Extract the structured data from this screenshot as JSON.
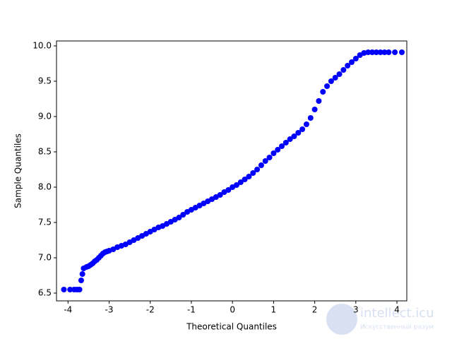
{
  "chart_data": {
    "type": "scatter",
    "xlabel": "Theoretical Quantiles",
    "ylabel": "Sample Quantiles",
    "color": "#0000ff",
    "x": [
      -4.1,
      -3.95,
      -3.85,
      -3.78,
      -3.72,
      -3.68,
      -3.65,
      -3.62,
      -3.55,
      -3.5,
      -3.45,
      -3.4,
      -3.35,
      -3.3,
      -3.25,
      -3.2,
      -3.15,
      -3.1,
      -3.05,
      -3.0,
      -2.9,
      -2.8,
      -2.7,
      -2.6,
      -2.5,
      -2.4,
      -2.3,
      -2.2,
      -2.1,
      -2.0,
      -1.9,
      -1.8,
      -1.7,
      -1.6,
      -1.5,
      -1.4,
      -1.3,
      -1.2,
      -1.1,
      -1.0,
      -0.9,
      -0.8,
      -0.7,
      -0.6,
      -0.5,
      -0.4,
      -0.3,
      -0.2,
      -0.1,
      0.0,
      0.1,
      0.2,
      0.3,
      0.4,
      0.5,
      0.6,
      0.7,
      0.8,
      0.9,
      1.0,
      1.1,
      1.2,
      1.3,
      1.4,
      1.5,
      1.6,
      1.7,
      1.8,
      1.9,
      2.0,
      2.1,
      2.2,
      2.3,
      2.4,
      2.5,
      2.6,
      2.7,
      2.8,
      2.9,
      3.0,
      3.1,
      3.2,
      3.3,
      3.4,
      3.5,
      3.6,
      3.7,
      3.8,
      3.95,
      4.12
    ],
    "values": [
      6.55,
      6.55,
      6.55,
      6.55,
      6.55,
      6.68,
      6.77,
      6.85,
      6.87,
      6.88,
      6.9,
      6.92,
      6.95,
      6.97,
      7.0,
      7.03,
      7.06,
      7.08,
      7.09,
      7.1,
      7.12,
      7.15,
      7.17,
      7.19,
      7.22,
      7.25,
      7.28,
      7.31,
      7.34,
      7.37,
      7.4,
      7.43,
      7.45,
      7.48,
      7.51,
      7.54,
      7.57,
      7.61,
      7.65,
      7.68,
      7.71,
      7.74,
      7.77,
      7.8,
      7.83,
      7.86,
      7.89,
      7.93,
      7.96,
      8.0,
      8.03,
      8.07,
      8.11,
      8.15,
      8.2,
      8.25,
      8.31,
      8.37,
      8.42,
      8.48,
      8.53,
      8.58,
      8.63,
      8.68,
      8.72,
      8.77,
      8.82,
      8.89,
      8.98,
      9.1,
      9.22,
      9.35,
      9.43,
      9.5,
      9.55,
      9.6,
      9.66,
      9.72,
      9.77,
      9.82,
      9.87,
      9.9,
      9.91,
      9.91,
      9.91,
      9.91,
      9.91,
      9.91,
      9.91,
      9.91
    ],
    "xlim": [
      -4.28,
      4.24
    ],
    "xticks": [
      -4,
      -3,
      -2,
      -1,
      0,
      1,
      2,
      3,
      4
    ],
    "ylim": [
      6.39,
      10.07
    ],
    "yticks": [
      {
        "value": 6.5,
        "label": "6.5"
      },
      {
        "value": 7,
        "label": "7.0"
      },
      {
        "value": 7.5,
        "label": "7.5"
      },
      {
        "value": 8,
        "label": "8.0"
      },
      {
        "value": 8.5,
        "label": "8.5"
      },
      {
        "value": 9,
        "label": "9.0"
      },
      {
        "value": 9.5,
        "label": "9.5"
      },
      {
        "value": 10,
        "label": "10.0"
      }
    ],
    "grid": false
  },
  "watermark": {
    "title": "intellect.icu",
    "subtitle": "Искусственный разум"
  }
}
